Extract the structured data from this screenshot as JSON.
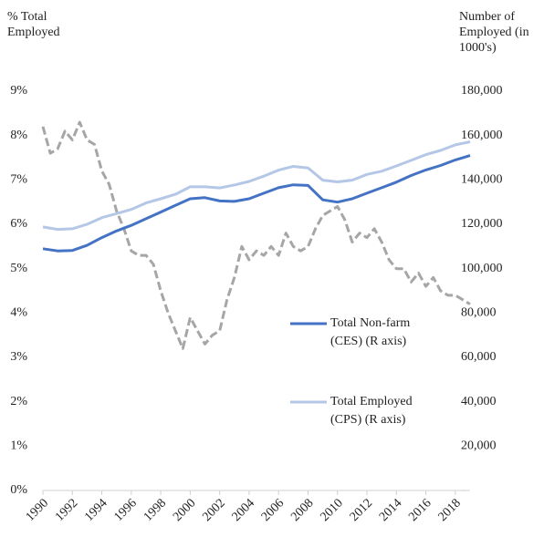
{
  "chart_data": {
    "type": "line",
    "y_label": "% Total Employed",
    "y2_label": "Number of Employed (in 1000's)",
    "xlim": [
      1990,
      2019
    ],
    "xticks": [
      1990,
      1992,
      1994,
      1996,
      1998,
      2000,
      2002,
      2004,
      2006,
      2008,
      2010,
      2012,
      2014,
      2016,
      2018
    ],
    "ylim": [
      0,
      9
    ],
    "yticks": [
      {
        "value": 0,
        "label": "0%"
      },
      {
        "value": 1,
        "label": "1%"
      },
      {
        "value": 2,
        "label": "2%"
      },
      {
        "value": 3,
        "label": "3%"
      },
      {
        "value": 4,
        "label": "4%"
      },
      {
        "value": 5,
        "label": "5%"
      },
      {
        "value": 6,
        "label": "6%"
      },
      {
        "value": 7,
        "label": "7%"
      },
      {
        "value": 8,
        "label": "8%"
      },
      {
        "value": 9,
        "label": "9%"
      }
    ],
    "y2lim": [
      0,
      180000
    ],
    "y2ticks": [
      {
        "value": 0,
        "label": "-"
      },
      {
        "value": 20000,
        "label": "20,000"
      },
      {
        "value": 40000,
        "label": "40,000"
      },
      {
        "value": 60000,
        "label": "60,000"
      },
      {
        "value": 80000,
        "label": "80,000"
      },
      {
        "value": 100000,
        "label": "100,000"
      },
      {
        "value": 120000,
        "label": "120,000"
      },
      {
        "value": 140000,
        "label": "140,000"
      },
      {
        "value": 160000,
        "label": "160,000"
      },
      {
        "value": 180000,
        "label": "180,000"
      }
    ],
    "series": [
      {
        "color": "#a6a6a6",
        "dashed": true,
        "x": [
          1990,
          1990.5,
          1991,
          1991.5,
          1992,
          1992.5,
          1993,
          1993.5,
          1994,
          1994.5,
          1995,
          1995.5,
          1996,
          1996.5,
          1997,
          1997.5,
          1998,
          1998.5,
          1999,
          1999.5,
          2000,
          2000.5,
          2001,
          2001.5,
          2002,
          2002.5,
          2003,
          2003.5,
          2004,
          2004.5,
          2005,
          2005.5,
          2006,
          2006.5,
          2007,
          2007.5,
          2008,
          2008.5,
          2009,
          2009.5,
          2010,
          2010.5,
          2011,
          2011.5,
          2012,
          2012.5,
          2013,
          2013.5,
          2014,
          2014.5,
          2015,
          2015.5,
          2016,
          2016.5,
          2017,
          2017.5,
          2018,
          2018.5,
          2019
        ],
        "values": [
          8.2,
          7.6,
          7.7,
          8.1,
          7.9,
          8.3,
          7.9,
          7.8,
          7.2,
          6.9,
          6.3,
          5.9,
          5.4,
          5.3,
          5.3,
          5.1,
          4.5,
          4.0,
          3.6,
          3.2,
          3.9,
          3.6,
          3.3,
          3.5,
          3.6,
          4.3,
          4.8,
          5.5,
          5.2,
          5.4,
          5.3,
          5.5,
          5.3,
          5.8,
          5.5,
          5.4,
          5.5,
          5.9,
          6.2,
          6.3,
          6.4,
          6.1,
          5.6,
          5.8,
          5.7,
          5.9,
          5.6,
          5.2,
          5.0,
          5.0,
          4.7,
          4.9,
          4.6,
          4.8,
          4.5,
          4.4,
          4.4,
          4.3,
          4.2
        ]
      },
      {
        "name": "Total Non-farm (CES) (R axis)",
        "color": "#4472c4",
        "axis": "y2",
        "x": [
          1990,
          1991,
          1992,
          1993,
          1994,
          1995,
          1996,
          1997,
          1998,
          1999,
          2000,
          2001,
          2002,
          2003,
          2004,
          2005,
          2006,
          2007,
          2008,
          2009,
          2010,
          2011,
          2012,
          2013,
          2014,
          2015,
          2016,
          2017,
          2018,
          2019
        ],
        "values": [
          109000,
          108000,
          108200,
          110500,
          114000,
          117000,
          119500,
          122500,
          125500,
          128500,
          131500,
          132000,
          130500,
          130300,
          131500,
          134000,
          136500,
          137800,
          137500,
          131000,
          130000,
          131500,
          134000,
          136500,
          139000,
          142000,
          144500,
          146500,
          149000,
          151000
        ]
      },
      {
        "name": "Total Employed (CPS) (R axis)",
        "color": "#b4c7e7",
        "axis": "y2",
        "x": [
          1990,
          1991,
          1992,
          1993,
          1994,
          1995,
          1996,
          1997,
          1998,
          1999,
          2000,
          2001,
          2002,
          2003,
          2004,
          2005,
          2006,
          2007,
          2008,
          2009,
          2010,
          2011,
          2012,
          2013,
          2014,
          2015,
          2016,
          2017,
          2018,
          2019
        ],
        "values": [
          118800,
          117700,
          118000,
          120000,
          123000,
          124800,
          126700,
          129600,
          131500,
          133500,
          136900,
          136900,
          136400,
          137700,
          139300,
          141700,
          144400,
          146100,
          145400,
          139900,
          139100,
          139900,
          142500,
          143900,
          146300,
          148800,
          151400,
          153300,
          155800,
          157200
        ]
      }
    ]
  }
}
